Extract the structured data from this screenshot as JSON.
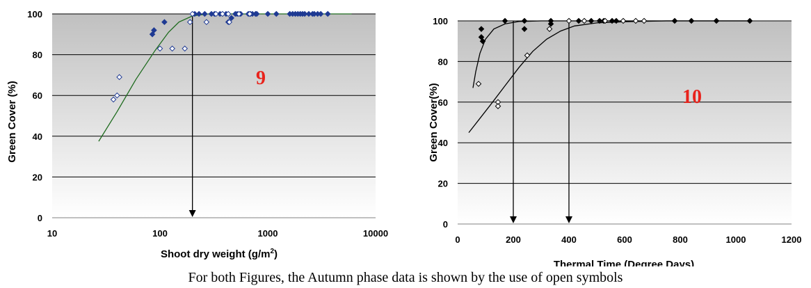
{
  "caption": "For both Figures, the Autumn phase data is shown by the use of open symbols",
  "colors": {
    "blue_marker": "#1f3a93",
    "black_marker": "#000000",
    "fit_green": "#1e6b1e",
    "fit_black": "#000000",
    "plot_top": "#c0c0c0",
    "plot_bottom": "#ffffff"
  },
  "chart_data": [
    {
      "type": "scatter",
      "annotation": "9",
      "xlabel": "Shoot dry weight (g/m",
      "xlabel_sup": "2",
      "xlabel_end": ")",
      "ylabel": "Green Cover (%)",
      "xscale": "log",
      "xlim": [
        10,
        10000
      ],
      "ylim": [
        0,
        100
      ],
      "xticks": [
        10,
        100,
        1000,
        10000
      ],
      "xtick_labels": [
        "10",
        "100",
        "1000",
        "10000"
      ],
      "yticks": [
        0,
        20,
        40,
        60,
        80,
        100
      ],
      "ytick_labels": [
        "0",
        "20",
        "40",
        "60",
        "80",
        "100"
      ],
      "grid": "horizontal",
      "marker": "diamond",
      "marker_color": "#1f3a93",
      "line_color": "#1e6b1e",
      "series": [
        {
          "filled": true,
          "points": [
            [
              85,
              90
            ],
            [
              88,
              92
            ],
            [
              110,
              96
            ],
            [
              210,
              100
            ],
            [
              230,
              100
            ],
            [
              260,
              100
            ],
            [
              300,
              100
            ],
            [
              320,
              100
            ],
            [
              360,
              100
            ],
            [
              410,
              100
            ],
            [
              430,
              96
            ],
            [
              460,
              98
            ],
            [
              500,
              100
            ],
            [
              520,
              100
            ],
            [
              560,
              100
            ],
            [
              660,
              100
            ],
            [
              690,
              100
            ],
            [
              720,
              100
            ],
            [
              770,
              100
            ],
            [
              790,
              100
            ],
            [
              1000,
              100
            ],
            [
              1200,
              100
            ],
            [
              1600,
              100
            ],
            [
              1700,
              100
            ],
            [
              1800,
              100
            ],
            [
              1900,
              100
            ],
            [
              2000,
              100
            ],
            [
              2100,
              100
            ],
            [
              2200,
              100
            ],
            [
              2400,
              100
            ],
            [
              2600,
              100
            ],
            [
              2700,
              100
            ],
            [
              2900,
              100
            ],
            [
              3100,
              100
            ],
            [
              3600,
              100
            ]
          ]
        },
        {
          "filled": false,
          "points": [
            [
              37,
              58
            ],
            [
              40,
              60
            ],
            [
              42,
              69
            ],
            [
              100,
              83
            ],
            [
              130,
              83
            ],
            [
              170,
              83
            ],
            [
              190,
              96
            ],
            [
              200,
              100
            ],
            [
              270,
              96
            ],
            [
              330,
              100
            ],
            [
              380,
              100
            ],
            [
              430,
              100
            ],
            [
              440,
              96
            ],
            [
              540,
              100
            ],
            [
              680,
              100
            ]
          ]
        }
      ],
      "fit_line": [
        [
          27,
          37.5
        ],
        [
          40,
          52
        ],
        [
          60,
          68
        ],
        [
          90,
          82
        ],
        [
          120,
          91
        ],
        [
          150,
          96
        ],
        [
          200,
          99
        ],
        [
          280,
          100
        ],
        [
          6000,
          100
        ]
      ],
      "vertical_arrows": [
        200
      ]
    },
    {
      "type": "scatter",
      "annotation": "10",
      "xlabel": "Thermal Time (Degree Days)",
      "ylabel": "Green Cover(%)",
      "xscale": "linear",
      "xlim": [
        0,
        1200
      ],
      "ylim": [
        0,
        100
      ],
      "xticks": [
        0,
        200,
        400,
        600,
        800,
        1000,
        1200
      ],
      "xtick_labels": [
        "0",
        "200",
        "400",
        "600",
        "800",
        "1000",
        "1200"
      ],
      "yticks": [
        0,
        20,
        40,
        60,
        80,
        100
      ],
      "ytick_labels": [
        "0",
        "20",
        "40",
        "60",
        "80",
        "100"
      ],
      "grid": "horizontal",
      "marker": "diamond",
      "marker_color": "#000000",
      "line_color": "#000000",
      "series": [
        {
          "filled": true,
          "points": [
            [
              85,
              96
            ],
            [
              85,
              92
            ],
            [
              90,
              90
            ],
            [
              170,
              100
            ],
            [
              240,
              100
            ],
            [
              240,
              96
            ],
            [
              335,
              100
            ],
            [
              335,
              98.5
            ],
            [
              435,
              100
            ],
            [
              480,
              100
            ],
            [
              510,
              100
            ],
            [
              525,
              100
            ],
            [
              555,
              100
            ],
            [
              570,
              100
            ],
            [
              780,
              100
            ],
            [
              840,
              100
            ],
            [
              930,
              100
            ],
            [
              1050,
              100
            ]
          ]
        },
        {
          "filled": false,
          "points": [
            [
              75,
              69
            ],
            [
              145,
              60
            ],
            [
              145,
              58
            ],
            [
              250,
              83
            ],
            [
              330,
              96
            ],
            [
              400,
              100
            ],
            [
              455,
              100
            ],
            [
              530,
              100
            ],
            [
              595,
              100
            ],
            [
              640,
              100
            ],
            [
              670,
              100
            ]
          ]
        }
      ],
      "fit_lines": [
        [
          [
            55,
            67
          ],
          [
            65,
            75
          ],
          [
            80,
            84
          ],
          [
            100,
            91
          ],
          [
            130,
            96
          ],
          [
            170,
            98.5
          ],
          [
            220,
            99.7
          ],
          [
            300,
            100
          ],
          [
            1050,
            100
          ]
        ],
        [
          [
            40,
            45
          ],
          [
            80,
            52
          ],
          [
            120,
            59
          ],
          [
            170,
            68
          ],
          [
            220,
            77
          ],
          [
            270,
            85
          ],
          [
            320,
            91
          ],
          [
            370,
            95
          ],
          [
            420,
            97.5
          ],
          [
            500,
            99
          ],
          [
            600,
            99.6
          ],
          [
            750,
            100
          ],
          [
            1050,
            100
          ]
        ]
      ],
      "vertical_arrows": [
        200,
        400
      ]
    }
  ]
}
